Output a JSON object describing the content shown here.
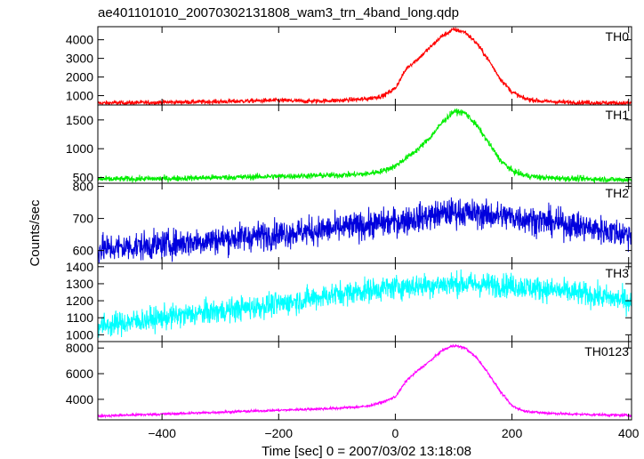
{
  "chart_data": {
    "type": "line",
    "title": "ae401101010_20070302131808_wam3_trn_4band_long.qdp",
    "xlabel": "Time [sec] 0 = 2007/03/02 13:18:08",
    "ylabel": "Counts/sec",
    "xlim": [
      -510,
      405
    ],
    "x_ticks": [
      -400,
      -200,
      0,
      200,
      400
    ],
    "x_tick_labels": [
      "−400",
      "−200",
      "0",
      "200",
      "400"
    ],
    "panels": [
      {
        "name": "TH0",
        "color": "#ff0000",
        "ylim": [
          500,
          4700
        ],
        "yticks": [
          1000,
          2000,
          3000,
          4000
        ],
        "noise": 60,
        "x": [
          -510,
          -400,
          -300,
          -200,
          -150,
          -100,
          -50,
          -20,
          0,
          20,
          40,
          60,
          80,
          100,
          120,
          140,
          160,
          180,
          200,
          220,
          250,
          300,
          350,
          400
        ],
        "values": [
          600,
          640,
          680,
          750,
          700,
          740,
          820,
          1000,
          1400,
          2500,
          3000,
          3600,
          4200,
          4550,
          4400,
          3800,
          2900,
          1900,
          1200,
          850,
          700,
          640,
          620,
          600
        ]
      },
      {
        "name": "TH1",
        "color": "#00ee00",
        "ylim": [
          400,
          1760
        ],
        "yticks": [
          500,
          1000,
          1500
        ],
        "noise": 25,
        "x": [
          -510,
          -400,
          -300,
          -200,
          -100,
          -50,
          -20,
          0,
          20,
          40,
          60,
          80,
          100,
          120,
          140,
          160,
          180,
          200,
          220,
          250,
          300,
          350,
          400
        ],
        "values": [
          470,
          480,
          500,
          520,
          540,
          560,
          620,
          700,
          850,
          1000,
          1200,
          1450,
          1650,
          1620,
          1400,
          1100,
          800,
          620,
          540,
          500,
          480,
          470,
          460
        ]
      },
      {
        "name": "TH2",
        "color": "#0000dd",
        "ylim": [
          560,
          810
        ],
        "yticks": [
          600,
          700,
          800
        ],
        "noise": 22,
        "x": [
          -510,
          -400,
          -300,
          -200,
          -100,
          0,
          100,
          200,
          300,
          400
        ],
        "values": [
          605,
          618,
          635,
          652,
          668,
          690,
          720,
          705,
          680,
          650
        ]
      },
      {
        "name": "TH3",
        "color": "#00ffff",
        "ylim": [
          960,
          1420
        ],
        "yticks": [
          1000,
          1100,
          1200,
          1300,
          1400
        ],
        "noise": 35,
        "x": [
          -510,
          -400,
          -300,
          -200,
          -100,
          0,
          100,
          200,
          300,
          400
        ],
        "values": [
          1050,
          1100,
          1140,
          1180,
          1240,
          1280,
          1300,
          1290,
          1250,
          1200
        ]
      },
      {
        "name": "TH0123",
        "color": "#ff00ff",
        "ylim": [
          2400,
          8500
        ],
        "yticks": [
          4000,
          6000,
          8000
        ],
        "noise": 50,
        "x": [
          -510,
          -400,
          -300,
          -200,
          -100,
          -50,
          -20,
          0,
          20,
          40,
          60,
          80,
          100,
          120,
          140,
          160,
          180,
          200,
          220,
          250,
          300,
          350,
          400
        ],
        "values": [
          2700,
          2850,
          3000,
          3150,
          3300,
          3450,
          3800,
          4200,
          5500,
          6300,
          7000,
          7800,
          8200,
          8000,
          7200,
          6000,
          4600,
          3500,
          3100,
          2950,
          2850,
          2800,
          2750
        ]
      }
    ]
  }
}
